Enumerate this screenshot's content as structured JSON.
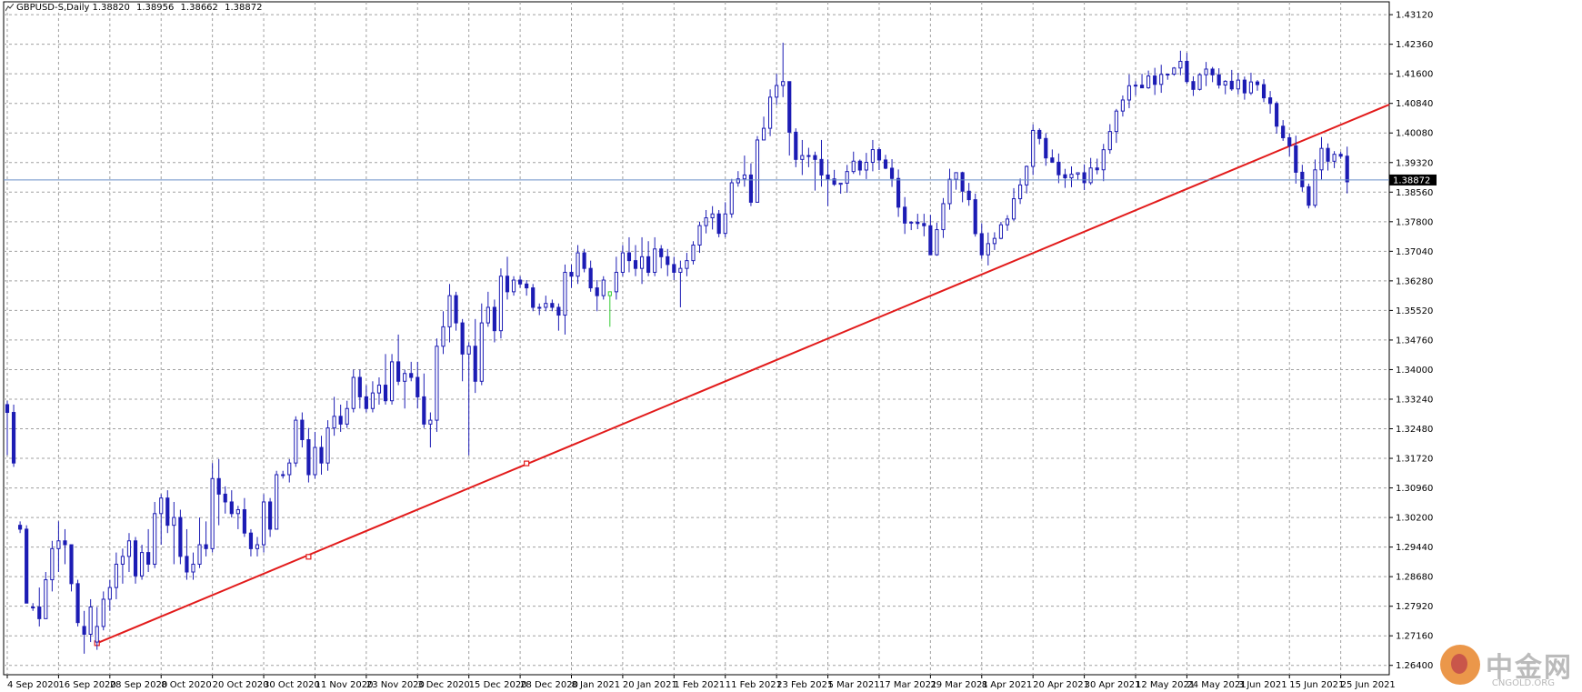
{
  "header": {
    "symbol_timeframe": "GBPUSD-S,Daily",
    "open": "1.38820",
    "high": "1.38956",
    "low": "1.38662",
    "close": "1.38872"
  },
  "watermark": {
    "brand": "中金网",
    "site": "CNGOLD.ORG"
  },
  "colors": {
    "background": "#ffffff",
    "grid": "#a0a0a0",
    "candle": "#1c1cb4",
    "doji": "#1c1cb4",
    "highlight_candle": "#33cc33",
    "trendline": "#e21b1b",
    "current_price_line": "#6a8fc8"
  },
  "chart_data": {
    "type": "candlestick",
    "title": "GBPUSD-S,Daily",
    "ylim": [
      1.2616,
      1.4345
    ],
    "y_ticks": [
      "1.43120",
      "1.42360",
      "1.41600",
      "1.40840",
      "1.40080",
      "1.39320",
      "1.38560",
      "1.37800",
      "1.37040",
      "1.36280",
      "1.35520",
      "1.34760",
      "1.34000",
      "1.33240",
      "1.32480",
      "1.31720",
      "1.30960",
      "1.30200",
      "1.29440",
      "1.28680",
      "1.27920",
      "1.27160",
      "1.26400"
    ],
    "x_ticks": [
      {
        "index": 0,
        "label": "4 Sep 2020"
      },
      {
        "index": 8,
        "label": "16 Sep 2020"
      },
      {
        "index": 16,
        "label": "28 Sep 2020"
      },
      {
        "index": 24,
        "label": "8 Oct 2020"
      },
      {
        "index": 32,
        "label": "20 Oct 2020"
      },
      {
        "index": 40,
        "label": "30 Oct 2020"
      },
      {
        "index": 48,
        "label": "11 Nov 2020"
      },
      {
        "index": 56,
        "label": "23 Nov 2020"
      },
      {
        "index": 64,
        "label": "3 Dec 2020"
      },
      {
        "index": 72,
        "label": "15 Dec 2020"
      },
      {
        "index": 80,
        "label": "28 Dec 2020"
      },
      {
        "index": 88,
        "label": "8 Jan 2021"
      },
      {
        "index": 96,
        "label": "20 Jan 2021"
      },
      {
        "index": 104,
        "label": "1 Feb 2021"
      },
      {
        "index": 112,
        "label": "11 Feb 2021"
      },
      {
        "index": 120,
        "label": "23 Feb 2021"
      },
      {
        "index": 128,
        "label": "5 Mar 2021"
      },
      {
        "index": 136,
        "label": "17 Mar 2021"
      },
      {
        "index": 144,
        "label": "29 Mar 2021"
      },
      {
        "index": 152,
        "label": "8 Apr 2021"
      },
      {
        "index": 160,
        "label": "20 Apr 2021"
      },
      {
        "index": 168,
        "label": "30 Apr 2021"
      },
      {
        "index": 176,
        "label": "12 May 2021"
      },
      {
        "index": 184,
        "label": "24 May 2021"
      },
      {
        "index": 192,
        "label": "3 Jun 2021"
      },
      {
        "index": 200,
        "label": "15 Jun 2021"
      },
      {
        "index": 208,
        "label": "25 Jun 2021"
      }
    ],
    "current_price": 1.38872,
    "current_price_label": "1.38872",
    "trendline": {
      "start_index": 14,
      "start_price": 1.2697,
      "end_price": 1.4081,
      "extend_right": true,
      "marked_points": [
        {
          "index": 14,
          "price": 1.2697
        },
        {
          "index": 47,
          "price": 1.2919
        },
        {
          "index": 81,
          "price": 1.3159
        }
      ]
    },
    "highlight_index": 94,
    "candles": [
      [
        1.331,
        1.332,
        1.318,
        1.329
      ],
      [
        1.329,
        1.331,
        1.315,
        1.316
      ],
      [
        1.3,
        1.301,
        1.298,
        1.299
      ],
      [
        1.299,
        1.3,
        1.28,
        1.28
      ],
      [
        1.279,
        1.28,
        1.278,
        1.279
      ],
      [
        1.279,
        1.284,
        1.274,
        1.276
      ],
      [
        1.276,
        1.288,
        1.276,
        1.286
      ],
      [
        1.286,
        1.296,
        1.283,
        1.294
      ],
      [
        1.294,
        1.301,
        1.288,
        1.296
      ],
      [
        1.296,
        1.299,
        1.29,
        1.295
      ],
      [
        1.295,
        1.295,
        1.283,
        1.285
      ],
      [
        1.285,
        1.286,
        1.274,
        1.275
      ],
      [
        1.274,
        1.278,
        1.267,
        1.272
      ],
      [
        1.272,
        1.281,
        1.27,
        1.279
      ],
      [
        1.27,
        1.279,
        1.268,
        1.274
      ],
      [
        1.274,
        1.283,
        1.273,
        1.281
      ],
      [
        1.281,
        1.286,
        1.278,
        1.284
      ],
      [
        1.284,
        1.293,
        1.281,
        1.29
      ],
      [
        1.29,
        1.294,
        1.285,
        1.292
      ],
      [
        1.292,
        1.298,
        1.288,
        1.296
      ],
      [
        1.296,
        1.297,
        1.285,
        1.287
      ],
      [
        1.287,
        1.295,
        1.286,
        1.293
      ],
      [
        1.293,
        1.299,
        1.288,
        1.29
      ],
      [
        1.29,
        1.306,
        1.289,
        1.303
      ],
      [
        1.303,
        1.308,
        1.295,
        1.307
      ],
      [
        1.307,
        1.309,
        1.298,
        1.3
      ],
      [
        1.3,
        1.306,
        1.29,
        1.302
      ],
      [
        1.302,
        1.304,
        1.29,
        1.292
      ],
      [
        1.292,
        1.299,
        1.286,
        1.288
      ],
      [
        1.288,
        1.293,
        1.286,
        1.29
      ],
      [
        1.29,
        1.302,
        1.289,
        1.295
      ],
      [
        1.295,
        1.301,
        1.292,
        1.294
      ],
      [
        1.294,
        1.316,
        1.293,
        1.312
      ],
      [
        1.312,
        1.317,
        1.3,
        1.308
      ],
      [
        1.308,
        1.31,
        1.303,
        1.306
      ],
      [
        1.306,
        1.309,
        1.302,
        1.303
      ],
      [
        1.303,
        1.305,
        1.299,
        1.304
      ],
      [
        1.304,
        1.307,
        1.297,
        1.298
      ],
      [
        1.298,
        1.299,
        1.292,
        1.294
      ],
      [
        1.294,
        1.297,
        1.292,
        1.295
      ],
      [
        1.295,
        1.308,
        1.293,
        1.306
      ],
      [
        1.306,
        1.307,
        1.297,
        1.299
      ],
      [
        1.299,
        1.314,
        1.299,
        1.313
      ],
      [
        1.313,
        1.314,
        1.312,
        1.313
      ],
      [
        1.313,
        1.317,
        1.311,
        1.316
      ],
      [
        1.316,
        1.328,
        1.315,
        1.327
      ],
      [
        1.327,
        1.329,
        1.32,
        1.322
      ],
      [
        1.322,
        1.325,
        1.311,
        1.313
      ],
      [
        1.313,
        1.324,
        1.312,
        1.32
      ],
      [
        1.32,
        1.323,
        1.313,
        1.316
      ],
      [
        1.316,
        1.327,
        1.314,
        1.325
      ],
      [
        1.325,
        1.333,
        1.323,
        1.328
      ],
      [
        1.328,
        1.331,
        1.324,
        1.326
      ],
      [
        1.326,
        1.332,
        1.325,
        1.33
      ],
      [
        1.33,
        1.34,
        1.329,
        1.338
      ],
      [
        1.338,
        1.34,
        1.33,
        1.333
      ],
      [
        1.333,
        1.336,
        1.329,
        1.33
      ],
      [
        1.33,
        1.337,
        1.329,
        1.334
      ],
      [
        1.334,
        1.338,
        1.331,
        1.336
      ],
      [
        1.336,
        1.344,
        1.331,
        1.332
      ],
      [
        1.332,
        1.344,
        1.331,
        1.342
      ],
      [
        1.342,
        1.349,
        1.336,
        1.337
      ],
      [
        1.337,
        1.34,
        1.33,
        1.339
      ],
      [
        1.339,
        1.342,
        1.337,
        1.338
      ],
      [
        1.338,
        1.342,
        1.33,
        1.333
      ],
      [
        1.333,
        1.339,
        1.325,
        1.326
      ],
      [
        1.326,
        1.329,
        1.32,
        1.327
      ],
      [
        1.327,
        1.348,
        1.324,
        1.346
      ],
      [
        1.346,
        1.355,
        1.344,
        1.351
      ],
      [
        1.351,
        1.362,
        1.347,
        1.359
      ],
      [
        1.359,
        1.36,
        1.35,
        1.352
      ],
      [
        1.352,
        1.353,
        1.337,
        1.344
      ],
      [
        1.344,
        1.347,
        1.318,
        1.346
      ],
      [
        1.346,
        1.353,
        1.334,
        1.337
      ],
      [
        1.337,
        1.357,
        1.336,
        1.352
      ],
      [
        1.352,
        1.36,
        1.351,
        1.356
      ],
      [
        1.356,
        1.358,
        1.347,
        1.35
      ],
      [
        1.35,
        1.366,
        1.348,
        1.364
      ],
      [
        1.364,
        1.369,
        1.358,
        1.36
      ],
      [
        1.36,
        1.364,
        1.359,
        1.363
      ],
      [
        1.363,
        1.364,
        1.361,
        1.362
      ],
      [
        1.362,
        1.363,
        1.359,
        1.361
      ],
      [
        1.361,
        1.362,
        1.355,
        1.356
      ],
      [
        1.356,
        1.357,
        1.354,
        1.356
      ],
      [
        1.356,
        1.359,
        1.355,
        1.357
      ],
      [
        1.357,
        1.358,
        1.355,
        1.356
      ],
      [
        1.356,
        1.357,
        1.35,
        1.354
      ],
      [
        1.354,
        1.367,
        1.349,
        1.365
      ],
      [
        1.365,
        1.367,
        1.361,
        1.364
      ],
      [
        1.364,
        1.372,
        1.362,
        1.37
      ],
      [
        1.37,
        1.371,
        1.365,
        1.366
      ],
      [
        1.366,
        1.368,
        1.36,
        1.361
      ],
      [
        1.361,
        1.363,
        1.355,
        1.359
      ],
      [
        1.359,
        1.364,
        1.358,
        1.363
      ],
      [
        1.359,
        1.36,
        1.351,
        1.36
      ],
      [
        1.36,
        1.369,
        1.358,
        1.365
      ],
      [
        1.365,
        1.372,
        1.364,
        1.37
      ],
      [
        1.37,
        1.374,
        1.365,
        1.368
      ],
      [
        1.368,
        1.372,
        1.364,
        1.366
      ],
      [
        1.366,
        1.374,
        1.362,
        1.369
      ],
      [
        1.369,
        1.373,
        1.364,
        1.365
      ],
      [
        1.365,
        1.374,
        1.364,
        1.371
      ],
      [
        1.371,
        1.372,
        1.366,
        1.369
      ],
      [
        1.369,
        1.371,
        1.364,
        1.367
      ],
      [
        1.367,
        1.369,
        1.363,
        1.365
      ],
      [
        1.365,
        1.368,
        1.356,
        1.366
      ],
      [
        1.366,
        1.37,
        1.364,
        1.368
      ],
      [
        1.368,
        1.373,
        1.367,
        1.372
      ],
      [
        1.372,
        1.378,
        1.37,
        1.377
      ],
      [
        1.377,
        1.381,
        1.375,
        1.379
      ],
      [
        1.379,
        1.382,
        1.376,
        1.38
      ],
      [
        1.38,
        1.381,
        1.374,
        1.375
      ],
      [
        1.375,
        1.383,
        1.374,
        1.38
      ],
      [
        1.38,
        1.389,
        1.379,
        1.388
      ],
      [
        1.388,
        1.391,
        1.387,
        1.389
      ],
      [
        1.389,
        1.395,
        1.387,
        1.39
      ],
      [
        1.39,
        1.393,
        1.382,
        1.383
      ],
      [
        1.383,
        1.4,
        1.383,
        1.399
      ],
      [
        1.399,
        1.405,
        1.399,
        1.402
      ],
      [
        1.402,
        1.412,
        1.4,
        1.41
      ],
      [
        1.41,
        1.416,
        1.408,
        1.413
      ],
      [
        1.413,
        1.424,
        1.41,
        1.414
      ],
      [
        1.414,
        1.414,
        1.395,
        1.401
      ],
      [
        1.401,
        1.402,
        1.392,
        1.394
      ],
      [
        1.394,
        1.399,
        1.39,
        1.395
      ],
      [
        1.395,
        1.397,
        1.392,
        1.395
      ],
      [
        1.395,
        1.396,
        1.386,
        1.394
      ],
      [
        1.394,
        1.399,
        1.387,
        1.39
      ],
      [
        1.39,
        1.394,
        1.382,
        1.389
      ]
    ]
  }
}
